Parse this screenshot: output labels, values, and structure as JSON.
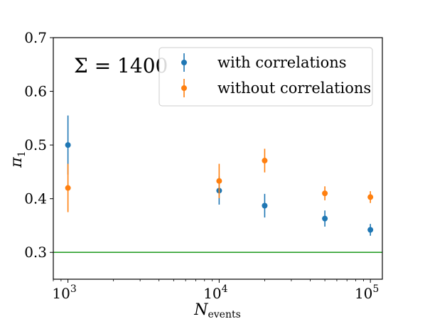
{
  "chart_data": {
    "type": "scatter",
    "title": "",
    "xlabel": "N",
    "xlabel_sub": "events",
    "ylabel": "π",
    "ylabel_sub": "1",
    "xscale": "log",
    "xlim": [
      800,
      120000
    ],
    "ylim": [
      0.25,
      0.7
    ],
    "x_ticks": [
      {
        "value": 1000,
        "base": "10",
        "exp": "3"
      },
      {
        "value": 10000,
        "base": "10",
        "exp": "4"
      },
      {
        "value": 100000,
        "base": "10",
        "exp": "5"
      }
    ],
    "y_ticks": [
      {
        "value": 0.3,
        "label": "0.3"
      },
      {
        "value": 0.4,
        "label": "0.4"
      },
      {
        "value": 0.5,
        "label": "0.5"
      },
      {
        "value": 0.6,
        "label": "0.6"
      },
      {
        "value": 0.7,
        "label": "0.7"
      }
    ],
    "grid": false,
    "legend_position": "top-right",
    "annotation": "Σ = 1400",
    "reference_line": {
      "y": 0.3,
      "color": "#2ca02c"
    },
    "series": [
      {
        "name": "with correlations",
        "color": "#1f77b4",
        "x": [
          1000,
          10000,
          20000,
          50000,
          100000
        ],
        "y": [
          0.5,
          0.415,
          0.387,
          0.363,
          0.342
        ],
        "err": [
          0.055,
          0.026,
          0.022,
          0.015,
          0.011
        ]
      },
      {
        "name": "without correlations",
        "color": "#ff7f0e",
        "x": [
          1000,
          10000,
          20000,
          50000,
          100000
        ],
        "y": [
          0.42,
          0.433,
          0.471,
          0.41,
          0.403
        ],
        "err": [
          0.045,
          0.032,
          0.022,
          0.013,
          0.011
        ]
      }
    ]
  }
}
